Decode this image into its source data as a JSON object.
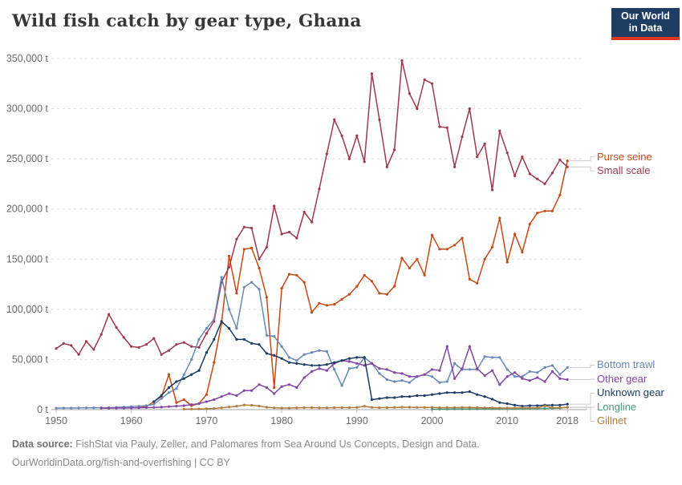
{
  "header": {
    "title": "Wild fish catch by gear type, Ghana",
    "logo": {
      "line1": "Our World",
      "line2": "in Data",
      "bg_color": "#1d3d63",
      "bar_color": "#dc3521"
    }
  },
  "chart_data": {
    "type": "line",
    "title": "Wild fish catch by gear type, Ghana",
    "entity": "Ghana",
    "unit": "t",
    "x_start": 1950,
    "x_end": 2018,
    "ylim": [
      0,
      350000
    ],
    "grid": "horizontal-dashed",
    "legend_position": "right-edge-labels",
    "yticks": [
      {
        "value": 0,
        "label": "0 t"
      },
      {
        "value": 50000,
        "label": "50,000 t"
      },
      {
        "value": 100000,
        "label": "100,000 t"
      },
      {
        "value": 150000,
        "label": "150,000 t"
      },
      {
        "value": 200000,
        "label": "200,000 t"
      },
      {
        "value": 250000,
        "label": "250,000 t"
      },
      {
        "value": 300000,
        "label": "300,000 t"
      },
      {
        "value": 350000,
        "label": "350,000 t"
      }
    ],
    "xticks": [
      {
        "value": 1950,
        "label": "1950"
      },
      {
        "value": 1960,
        "label": "1960"
      },
      {
        "value": 1970,
        "label": "1970"
      },
      {
        "value": 1980,
        "label": "1980"
      },
      {
        "value": 1990,
        "label": "1990"
      },
      {
        "value": 2000,
        "label": "2000"
      },
      {
        "value": 2010,
        "label": "2010"
      },
      {
        "value": 2018,
        "label": "2018"
      }
    ],
    "series": [
      {
        "name": "Purse seine",
        "color": "#c44a17",
        "values": [
          null,
          null,
          null,
          null,
          null,
          null,
          null,
          null,
          null,
          null,
          null,
          2000,
          3000,
          8000,
          13000,
          35000,
          7000,
          10000,
          4000,
          6000,
          15000,
          47000,
          86000,
          153000,
          116000,
          160000,
          161000,
          141000,
          112000,
          22000,
          121000,
          135000,
          134000,
          127000,
          97000,
          106000,
          104000,
          105000,
          110000,
          115000,
          123000,
          134000,
          128000,
          116000,
          115000,
          123000,
          151000,
          141000,
          150000,
          134000,
          174000,
          160000,
          160000,
          164000,
          171000,
          130000,
          126000,
          150000,
          162000,
          191000,
          147000,
          175000,
          157000,
          185000,
          196000,
          198000,
          198000,
          214000,
          248000
        ]
      },
      {
        "name": "Small scale",
        "color": "#9c3a4e",
        "values": [
          61000,
          66000,
          64000,
          55000,
          68000,
          60000,
          75000,
          95000,
          82000,
          72000,
          63000,
          62000,
          65000,
          71000,
          55000,
          59000,
          65000,
          67000,
          63000,
          62000,
          76000,
          88000,
          127000,
          142000,
          170000,
          182000,
          181000,
          150000,
          162000,
          203000,
          175000,
          177000,
          171000,
          197000,
          187000,
          220000,
          255000,
          289000,
          273000,
          250000,
          273000,
          247000,
          335000,
          289000,
          242000,
          259000,
          348000,
          315000,
          300000,
          329000,
          325000,
          282000,
          281000,
          242000,
          272000,
          300000,
          252000,
          265000,
          219000,
          278000,
          256000,
          233000,
          252000,
          235000,
          230000,
          225000,
          236000,
          249000,
          242000
        ]
      },
      {
        "name": "Bottom trawl",
        "color": "#6789b5",
        "values": [
          1500,
          1600,
          1600,
          1700,
          1800,
          1800,
          1900,
          2000,
          2200,
          2600,
          3000,
          3400,
          4000,
          5400,
          11000,
          17000,
          21000,
          35000,
          50000,
          70000,
          81000,
          90000,
          132000,
          100000,
          81000,
          122000,
          127000,
          120000,
          74000,
          73000,
          63000,
          52000,
          49000,
          55000,
          57000,
          59000,
          58000,
          40000,
          24000,
          41000,
          42000,
          52000,
          46000,
          36000,
          30000,
          28000,
          29000,
          27000,
          33000,
          35000,
          33000,
          27000,
          28000,
          46000,
          40000,
          40000,
          40000,
          53000,
          52000,
          52000,
          40000,
          33000,
          33000,
          38000,
          37000,
          42000,
          44000,
          35000,
          42000
        ]
      },
      {
        "name": "Other gear",
        "color": "#8346a5",
        "values": [
          null,
          null,
          null,
          null,
          null,
          null,
          1500,
          1500,
          1600,
          1600,
          1700,
          1800,
          2000,
          2200,
          2500,
          3000,
          3500,
          4000,
          5000,
          6000,
          8000,
          10000,
          13000,
          16000,
          14000,
          19000,
          19000,
          25000,
          22000,
          16000,
          23000,
          25000,
          22000,
          32000,
          38000,
          41000,
          39000,
          46000,
          49000,
          48000,
          46000,
          44000,
          46000,
          41000,
          40000,
          37000,
          36000,
          33000,
          33000,
          35000,
          40000,
          39000,
          63000,
          31000,
          41000,
          63000,
          41000,
          34000,
          39000,
          25000,
          33000,
          37000,
          31000,
          29000,
          32000,
          28000,
          38000,
          31000,
          30000
        ]
      },
      {
        "name": "Unknown gear",
        "color": "#1d3c63",
        "values": [
          null,
          null,
          null,
          null,
          null,
          null,
          null,
          null,
          null,
          null,
          null,
          null,
          null,
          8000,
          14000,
          22000,
          28000,
          31000,
          35000,
          39000,
          57000,
          70000,
          88000,
          81000,
          70000,
          70000,
          66000,
          65000,
          56000,
          54000,
          51000,
          47000,
          46000,
          45000,
          44000,
          44000,
          45000,
          47000,
          49000,
          51000,
          52000,
          52000,
          10000,
          11000,
          12000,
          12000,
          13000,
          13000,
          14000,
          14000,
          15000,
          16000,
          17000,
          17000,
          17000,
          18000,
          15000,
          13000,
          10500,
          7000,
          6000,
          4500,
          3500,
          4000,
          4000,
          4500,
          4500,
          4500,
          5500
        ]
      },
      {
        "name": "Longline",
        "color": "#4c9a7c",
        "values": [
          null,
          null,
          null,
          null,
          null,
          null,
          null,
          null,
          null,
          null,
          null,
          null,
          null,
          null,
          null,
          null,
          null,
          null,
          null,
          null,
          null,
          null,
          null,
          null,
          null,
          null,
          null,
          null,
          null,
          null,
          null,
          null,
          null,
          null,
          null,
          null,
          null,
          null,
          null,
          null,
          null,
          null,
          null,
          null,
          null,
          null,
          null,
          null,
          null,
          null,
          400,
          500,
          500,
          600,
          600,
          700,
          700,
          800,
          800,
          800,
          900,
          900,
          1000,
          1000,
          1100,
          1200,
          1300,
          1500,
          2400
        ]
      },
      {
        "name": "Gillnet",
        "color": "#b07c3f",
        "values": [
          null,
          null,
          null,
          null,
          null,
          null,
          null,
          null,
          null,
          null,
          null,
          null,
          null,
          null,
          null,
          null,
          null,
          500,
          600,
          700,
          900,
          1200,
          1800,
          2600,
          3400,
          4600,
          4400,
          3600,
          2400,
          1800,
          1600,
          1600,
          1800,
          2000,
          2000,
          1800,
          1800,
          2000,
          2000,
          2000,
          2200,
          3400,
          2200,
          2000,
          2000,
          2200,
          2400,
          2400,
          2200,
          2200,
          2200,
          2000,
          2000,
          2000,
          2200,
          2200,
          2000,
          1800,
          1800,
          1600,
          1600,
          1600,
          1800,
          1800,
          1800,
          3800,
          2000,
          2000,
          2200
        ]
      }
    ]
  },
  "footer": {
    "source_label": "Data source:",
    "source_text": " FishStat via Pauly, Zeller, and Palomares from Sea Around Us Concepts, Design and Data.",
    "link_line": "OurWorldinData.org/fish-and-overfishing | CC BY"
  }
}
